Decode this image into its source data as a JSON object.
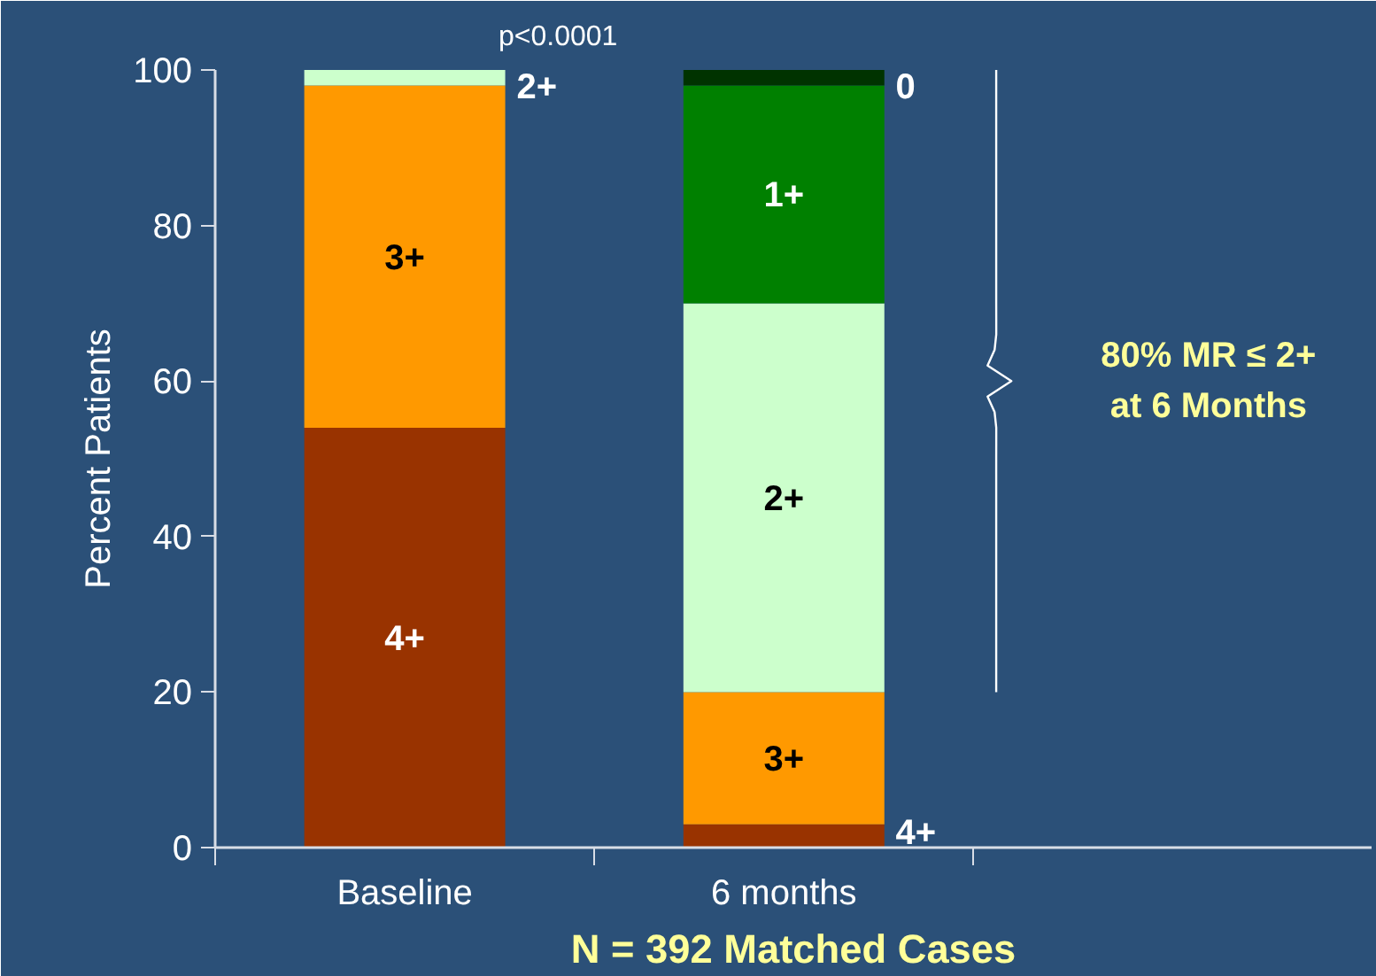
{
  "chart_data": {
    "type": "bar",
    "stacked": true,
    "categories": [
      "Baseline",
      "6 months"
    ],
    "ylabel": "Percent Patients",
    "xlabel": "N = 392 Matched Cases",
    "ylim": [
      0,
      100
    ],
    "yticks": [
      0,
      20,
      40,
      60,
      80,
      100
    ],
    "grid": false,
    "series": [
      {
        "name": "4+",
        "color": "#993300",
        "values": [
          54,
          3
        ]
      },
      {
        "name": "3+",
        "color": "#ff9900",
        "values": [
          44,
          17
        ]
      },
      {
        "name": "2+",
        "color": "#ccffcc",
        "values": [
          2,
          50
        ]
      },
      {
        "name": "1+",
        "color": "#008000",
        "values": [
          null,
          28
        ]
      },
      {
        "name": "0",
        "color": "#003300",
        "values": [
          null,
          2
        ]
      }
    ],
    "annotations": [
      "p<0.0001",
      "80% MR ≤ 2+\nat 6 Months"
    ]
  }
}
